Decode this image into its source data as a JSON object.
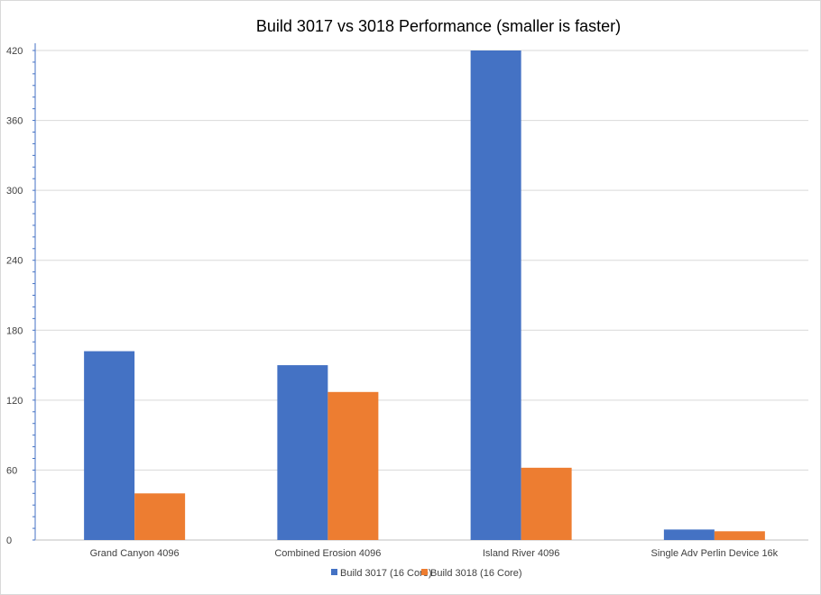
{
  "chart_data": {
    "type": "bar",
    "title": "Build 3017 vs 3018 Performance (smaller is faster)",
    "xlabel": "",
    "ylabel": "",
    "categories": [
      "Grand Canyon 4096",
      "Combined Erosion 4096",
      "Island River 4096",
      "Single Adv Perlin Device 16k"
    ],
    "series": [
      {
        "name": "Build 3017 (16 Core)",
        "color": "#4472C4",
        "values": [
          162,
          150,
          420,
          9
        ]
      },
      {
        "name": "Build 3018 (16 Core)",
        "color": "#ED7D31",
        "values": [
          40,
          127,
          62,
          7.5
        ]
      }
    ],
    "ylim": [
      0,
      420
    ],
    "yticks": [
      0,
      60,
      120,
      180,
      240,
      300,
      360,
      420
    ],
    "grid": true,
    "legend_position": "bottom"
  }
}
